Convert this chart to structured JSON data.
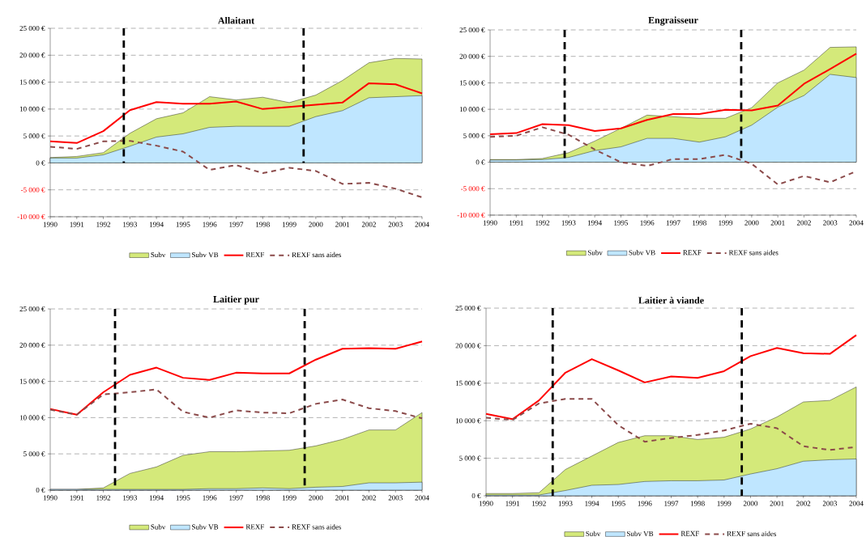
{
  "chart_data": [
    {
      "type": "area",
      "title": "Allaitant",
      "x": [
        1990,
        1991,
        1992,
        1993,
        1994,
        1995,
        1996,
        1997,
        1998,
        1999,
        2000,
        2001,
        2002,
        2003,
        2004
      ],
      "xlim": [
        1990,
        2004
      ],
      "xticks": [
        1990,
        1991,
        1992,
        1993,
        1994,
        1995,
        1996,
        1997,
        1998,
        1999,
        2000,
        2001,
        2002,
        2003,
        2004
      ],
      "ylim": [
        -10000,
        25000
      ],
      "yticks": [
        {
          "value": -10000,
          "label": "-10 000 €"
        },
        {
          "value": -5000,
          "label": "-5 000 €"
        },
        {
          "value": 0,
          "label": "0 €"
        },
        {
          "value": 5000,
          "label": "5 000 €"
        },
        {
          "value": 10000,
          "label": "10 000 €"
        },
        {
          "value": 15000,
          "label": "15 000 €"
        },
        {
          "value": 20000,
          "label": "20 000 €"
        },
        {
          "value": 25000,
          "label": "25 000 €"
        }
      ],
      "grid": "y",
      "legend": "bottom",
      "series": [
        {
          "name": "Subv",
          "color": "#d4e97a",
          "values": [
            1000,
            1200,
            1900,
            5500,
            8200,
            9300,
            12300,
            11700,
            12200,
            11200,
            12600,
            15300,
            18600,
            19400,
            19300
          ]
        },
        {
          "name": "Subv VB",
          "color": "#bfe6ff",
          "values": [
            900,
            900,
            1500,
            3100,
            4800,
            5400,
            6600,
            6800,
            6800,
            6800,
            8600,
            9700,
            12100,
            12300,
            12500
          ]
        },
        {
          "name": "REXF",
          "type": "line",
          "color": "#ff0000",
          "line_style": "solid",
          "values": [
            4000,
            3700,
            5900,
            9800,
            11300,
            11000,
            11000,
            11400,
            10000,
            10400,
            10800,
            11200,
            14800,
            14600,
            12900
          ]
        },
        {
          "name": "REXF sans aides",
          "type": "line",
          "color": "#8b4a4a",
          "line_style": "dashed",
          "values": [
            3000,
            2600,
            4000,
            4100,
            3200,
            2100,
            -1300,
            -400,
            -1900,
            -900,
            -1500,
            -3900,
            -3700,
            -4800,
            -6400
          ]
        }
      ],
      "ref_lines": [
        {
          "axis": "x",
          "value": 1992.77,
          "color": "#000000",
          "line_style": "dashed"
        },
        {
          "axis": "x",
          "value": 1999.54,
          "color": "#000000",
          "line_style": "dashed"
        }
      ]
    },
    {
      "type": "area",
      "title": "Engraisseur",
      "x": [
        1990,
        1991,
        1992,
        1993,
        1994,
        1995,
        1996,
        1997,
        1998,
        1999,
        2000,
        2001,
        2002,
        2003,
        2004
      ],
      "xlim": [
        1990,
        2004
      ],
      "xticks": [
        1990,
        1991,
        1992,
        1993,
        1994,
        1995,
        1996,
        1997,
        1998,
        1999,
        2000,
        2001,
        2002,
        2003,
        2004
      ],
      "ylim": [
        -10000,
        25000
      ],
      "yticks": [
        {
          "value": -10000,
          "label": "-10 000 €"
        },
        {
          "value": -5000,
          "label": "-5 000 €"
        },
        {
          "value": 0,
          "label": "0 €"
        },
        {
          "value": 5000,
          "label": "5 000 €"
        },
        {
          "value": 10000,
          "label": "10 000 €"
        },
        {
          "value": 15000,
          "label": "15 000 €"
        },
        {
          "value": 20000,
          "label": "20 000 €"
        },
        {
          "value": 25000,
          "label": "25 000 €"
        }
      ],
      "grid": "y",
      "legend": "bottom",
      "series": [
        {
          "name": "Subv",
          "color": "#d4e97a",
          "values": [
            500,
            500,
            700,
            1800,
            4000,
            6400,
            8900,
            8600,
            8300,
            8300,
            10300,
            15000,
            17400,
            21700,
            21800
          ]
        },
        {
          "name": "Subv VB",
          "color": "#bfe6ff",
          "values": [
            400,
            400,
            500,
            900,
            2200,
            2900,
            4500,
            4500,
            3800,
            4800,
            7000,
            10400,
            12600,
            16600,
            16000
          ]
        },
        {
          "name": "REXF",
          "type": "line",
          "color": "#ff0000",
          "line_style": "solid",
          "values": [
            5300,
            5500,
            7200,
            7000,
            5900,
            6400,
            8000,
            9100,
            9100,
            9900,
            9800,
            10700,
            14800,
            17600,
            20500
          ]
        },
        {
          "name": "REXF sans aides",
          "type": "line",
          "color": "#8b4a4a",
          "line_style": "dashed",
          "values": [
            4800,
            5000,
            6600,
            5200,
            2400,
            0,
            -700,
            600,
            600,
            1400,
            -300,
            -4200,
            -2600,
            -3800,
            -1700
          ]
        }
      ],
      "ref_lines": [
        {
          "axis": "x",
          "value": 1992.85,
          "color": "#000000",
          "line_style": "dashed"
        },
        {
          "axis": "x",
          "value": 1999.6,
          "color": "#000000",
          "line_style": "dashed"
        }
      ]
    },
    {
      "type": "area",
      "title": "Laitier pur",
      "x": [
        1990,
        1991,
        1992,
        1993,
        1994,
        1995,
        1996,
        1997,
        1998,
        1999,
        2000,
        2001,
        2002,
        2003,
        2004
      ],
      "xlim": [
        1990,
        2004
      ],
      "xticks": [
        1990,
        1991,
        1992,
        1993,
        1994,
        1995,
        1996,
        1997,
        1998,
        1999,
        2000,
        2001,
        2002,
        2003,
        2004
      ],
      "ylim": [
        0,
        25000
      ],
      "yticks": [
        {
          "value": 0,
          "label": "0 €"
        },
        {
          "value": 5000,
          "label": "5 000 €"
        },
        {
          "value": 10000,
          "label": "10 000 €"
        },
        {
          "value": 15000,
          "label": "15 000 €"
        },
        {
          "value": 20000,
          "label": "20 000 €"
        },
        {
          "value": 25000,
          "label": "25 000 €"
        }
      ],
      "grid": "y",
      "legend": "bottom",
      "series": [
        {
          "name": "Subv",
          "color": "#d4e97a",
          "values": [
            100,
            100,
            300,
            2300,
            3200,
            4800,
            5300,
            5300,
            5400,
            5500,
            6100,
            7000,
            8300,
            8300,
            10700
          ]
        },
        {
          "name": "Subv VB",
          "color": "#bfe6ff",
          "values": [
            100,
            100,
            100,
            100,
            100,
            100,
            200,
            200,
            300,
            200,
            400,
            500,
            1000,
            1000,
            1100
          ]
        },
        {
          "name": "REXF",
          "type": "line",
          "color": "#ff0000",
          "line_style": "solid",
          "values": [
            11200,
            10400,
            13500,
            15900,
            16900,
            15500,
            15200,
            16200,
            16100,
            16100,
            18000,
            19500,
            19600,
            19500,
            20500
          ]
        },
        {
          "name": "REXF sans aides",
          "type": "line",
          "color": "#8b4a4a",
          "line_style": "dashed",
          "values": [
            11100,
            10400,
            13200,
            13500,
            13900,
            10800,
            10000,
            11000,
            10700,
            10600,
            11900,
            12500,
            11300,
            10900,
            9900
          ]
        }
      ],
      "ref_lines": [
        {
          "axis": "x",
          "value": 1992.44,
          "color": "#000000",
          "line_style": "dashed"
        },
        {
          "axis": "x",
          "value": 1999.58,
          "color": "#000000",
          "line_style": "dashed"
        }
      ]
    },
    {
      "type": "area",
      "title": "Laitier à viande",
      "x": [
        1990,
        1991,
        1992,
        1993,
        1994,
        1995,
        1996,
        1997,
        1998,
        1999,
        2000,
        2001,
        2002,
        2003,
        2004
      ],
      "xlim": [
        1990,
        2004
      ],
      "xticks": [
        1990,
        1991,
        1992,
        1993,
        1994,
        1995,
        1996,
        1997,
        1998,
        1999,
        2000,
        2001,
        2002,
        2003,
        2004
      ],
      "ylim": [
        0,
        25000
      ],
      "yticks": [
        {
          "value": 0,
          "label": "0 €"
        },
        {
          "value": 5000,
          "label": "5 000 €"
        },
        {
          "value": 10000,
          "label": "10 000 €"
        },
        {
          "value": 15000,
          "label": "15 000 €"
        },
        {
          "value": 20000,
          "label": "20 000 €"
        },
        {
          "value": 25000,
          "label": "25 000 €"
        }
      ],
      "grid": "y",
      "legend": "bottom",
      "series": [
        {
          "name": "Subv",
          "color": "#d4e97a",
          "values": [
            300,
            300,
            400,
            3500,
            5300,
            7100,
            8000,
            8000,
            7500,
            7800,
            8900,
            10500,
            12500,
            12700,
            14500
          ]
        },
        {
          "name": "Subv VB",
          "color": "#bfe6ff",
          "values": [
            100,
            100,
            100,
            700,
            1400,
            1500,
            1900,
            2000,
            2000,
            2100,
            2900,
            3600,
            4600,
            4800,
            4900
          ]
        },
        {
          "name": "REXF",
          "type": "line",
          "color": "#ff0000",
          "line_style": "solid",
          "values": [
            10900,
            10200,
            12700,
            16400,
            18200,
            16700,
            15100,
            15900,
            15700,
            16600,
            18600,
            19700,
            19000,
            18900,
            21400
          ]
        },
        {
          "name": "REXF sans aides",
          "type": "line",
          "color": "#8b4a4a",
          "line_style": "dashed",
          "values": [
            10400,
            10100,
            12300,
            12900,
            12900,
            9400,
            7200,
            7700,
            8100,
            8700,
            9600,
            9000,
            6600,
            6100,
            6500
          ]
        }
      ],
      "ref_lines": [
        {
          "axis": "x",
          "value": 1992.52,
          "color": "#000000",
          "line_style": "dashed"
        },
        {
          "axis": "x",
          "value": 1999.67,
          "color": "#000000",
          "line_style": "dashed"
        }
      ]
    }
  ]
}
